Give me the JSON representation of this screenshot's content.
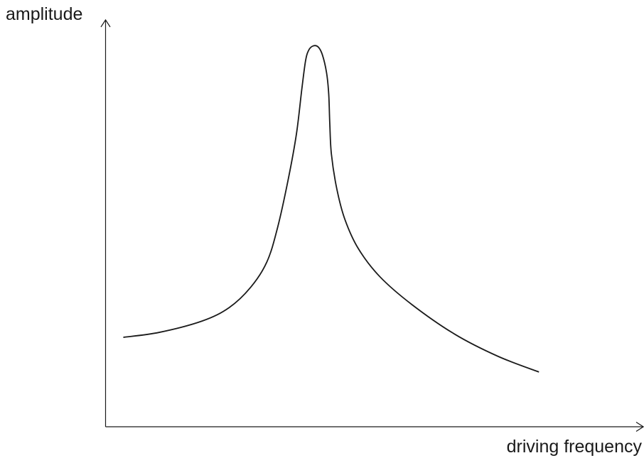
{
  "chart_data": {
    "type": "line",
    "xlabel": "driving frequency",
    "ylabel": "amplitude",
    "xlim": [
      0,
      100
    ],
    "ylim": [
      0,
      100
    ],
    "grid": false,
    "legend": "none",
    "series": [
      {
        "x": [
          3.4,
          10,
          18,
          23,
          27,
          30,
          32,
          34,
          35.5,
          36.5,
          37.2,
          37.8,
          38.6,
          39.5,
          40.3,
          41.1,
          41.5,
          41.7,
          42,
          43,
          44.5,
          47,
          51,
          57,
          65,
          73,
          80.5
        ],
        "y": [
          22,
          23.2,
          26,
          29.3,
          34.3,
          40.5,
          49,
          61,
          72,
          83,
          90,
          92.6,
          93.6,
          93.4,
          91.5,
          87,
          81.8,
          74.5,
          67,
          58.5,
          51,
          43.8,
          36.9,
          30,
          22.7,
          17.3,
          13.5
        ]
      }
    ],
    "colors": {
      "ink": "#1a1a1a",
      "background": "#ffffff"
    }
  }
}
